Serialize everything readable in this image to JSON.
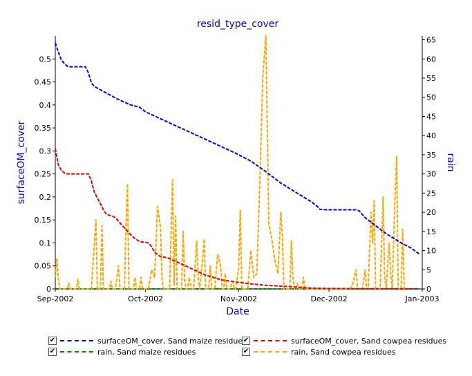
{
  "chart_data": {
    "type": "line",
    "title": "resid_type_cover",
    "xlabel": "Date",
    "ylabel_left": "surfaceOM_cover",
    "ylabel_right": "rain",
    "x_ticks": [
      "Sep-2002",
      "Oct-2002",
      "Nov-2002",
      "Dec-2002",
      "Jan-2003"
    ],
    "xlim_days": [
      0,
      122
    ],
    "ylim_left": [
      0,
      0.55
    ],
    "y_ticks_left": [
      "0",
      "0.05",
      "0.1",
      "0.15",
      "0.2",
      "0.25",
      "0.3",
      "0.35",
      "0.4",
      "0.45",
      "0.5"
    ],
    "ylim_right": [
      0,
      66
    ],
    "y_ticks_right": [
      "0",
      "5",
      "10",
      "15",
      "20",
      "25",
      "30",
      "35",
      "40",
      "45",
      "50",
      "55",
      "60",
      "65"
    ],
    "grid": false,
    "legend_position": "bottom",
    "series": [
      {
        "name": "surfaceOM_cover, Sand maize residues",
        "axis": "left",
        "color": "#0000cc",
        "points": [
          [
            0,
            0.535
          ],
          [
            1,
            0.515
          ],
          [
            2,
            0.498
          ],
          [
            3,
            0.49
          ],
          [
            4,
            0.484
          ],
          [
            5,
            0.483
          ],
          [
            10,
            0.483
          ],
          [
            11,
            0.47
          ],
          [
            12,
            0.448
          ],
          [
            13,
            0.44
          ],
          [
            15,
            0.433
          ],
          [
            20,
            0.415
          ],
          [
            25,
            0.4
          ],
          [
            28,
            0.395
          ],
          [
            30,
            0.385
          ],
          [
            40,
            0.355
          ],
          [
            50,
            0.325
          ],
          [
            60,
            0.295
          ],
          [
            65,
            0.278
          ],
          [
            70,
            0.255
          ],
          [
            75,
            0.23
          ],
          [
            80,
            0.21
          ],
          [
            85,
            0.19
          ],
          [
            87,
            0.18
          ],
          [
            88,
            0.173
          ],
          [
            90,
            0.172
          ],
          [
            100,
            0.172
          ],
          [
            101,
            0.17
          ],
          [
            103,
            0.155
          ],
          [
            105,
            0.145
          ],
          [
            107,
            0.135
          ],
          [
            110,
            0.12
          ],
          [
            115,
            0.1
          ],
          [
            118,
            0.09
          ],
          [
            121,
            0.076
          ]
        ]
      },
      {
        "name": "surfaceOM_cover, Sand cowpea residues",
        "axis": "left",
        "color": "#dd0000",
        "points": [
          [
            0,
            0.305
          ],
          [
            1,
            0.27
          ],
          [
            2,
            0.258
          ],
          [
            3,
            0.252
          ],
          [
            4,
            0.25
          ],
          [
            11,
            0.25
          ],
          [
            12,
            0.235
          ],
          [
            13,
            0.21
          ],
          [
            15,
            0.185
          ],
          [
            16,
            0.172
          ],
          [
            17,
            0.162
          ],
          [
            19,
            0.158
          ],
          [
            20,
            0.155
          ],
          [
            22,
            0.14
          ],
          [
            24,
            0.125
          ],
          [
            26,
            0.112
          ],
          [
            28,
            0.103
          ],
          [
            31,
            0.1
          ],
          [
            32,
            0.092
          ],
          [
            33,
            0.08
          ],
          [
            35,
            0.07
          ],
          [
            37,
            0.068
          ],
          [
            38,
            0.066
          ],
          [
            40,
            0.06
          ],
          [
            45,
            0.045
          ],
          [
            50,
            0.03
          ],
          [
            55,
            0.02
          ],
          [
            60,
            0.015
          ],
          [
            65,
            0.011
          ],
          [
            70,
            0.008
          ],
          [
            75,
            0.006
          ],
          [
            80,
            0.004
          ],
          [
            85,
            0.002
          ],
          [
            90,
            0.001
          ],
          [
            100,
            0.0005
          ],
          [
            110,
            0.0003
          ],
          [
            121,
            0.0002
          ]
        ]
      },
      {
        "name": "rain, Sand maize residues",
        "axis": "right",
        "color": "#008000",
        "points": [
          [
            0,
            0
          ],
          [
            121,
            0
          ]
        ]
      },
      {
        "name": "rain, Sand cowpea residues",
        "axis": "right",
        "color": "#ffa500",
        "points": [
          [
            0,
            3
          ],
          [
            0.5,
            8
          ],
          [
            1,
            3
          ],
          [
            1.5,
            0
          ],
          [
            4,
            0
          ],
          [
            4.5,
            1.5
          ],
          [
            5,
            0
          ],
          [
            7,
            0
          ],
          [
            7.5,
            2.5
          ],
          [
            8,
            0
          ],
          [
            12,
            0
          ],
          [
            13,
            12
          ],
          [
            13.5,
            18
          ],
          [
            14,
            0
          ],
          [
            15,
            0
          ],
          [
            15.5,
            16.5
          ],
          [
            16,
            0
          ],
          [
            18,
            0
          ],
          [
            18.5,
            2
          ],
          [
            19,
            0
          ],
          [
            20,
            0
          ],
          [
            21,
            6
          ],
          [
            21.5,
            0
          ],
          [
            23,
            0
          ],
          [
            23.5,
            17
          ],
          [
            24,
            27.5
          ],
          [
            24.5,
            0
          ],
          [
            26,
            0
          ],
          [
            26.5,
            3
          ],
          [
            27,
            0
          ],
          [
            28,
            0
          ],
          [
            28.5,
            3
          ],
          [
            29,
            0
          ],
          [
            31,
            0
          ],
          [
            32,
            5
          ],
          [
            33,
            3
          ],
          [
            34,
            21.5
          ],
          [
            35,
            16
          ],
          [
            35.5,
            2
          ],
          [
            36,
            0
          ],
          [
            38,
            0
          ],
          [
            39,
            28.5
          ],
          [
            39.5,
            1
          ],
          [
            40,
            19
          ],
          [
            40.5,
            0
          ],
          [
            42,
            0
          ],
          [
            42.5,
            15
          ],
          [
            43,
            2
          ],
          [
            43.5,
            0
          ],
          [
            44,
            0
          ],
          [
            44.5,
            3
          ],
          [
            45,
            1
          ],
          [
            45.5,
            0
          ],
          [
            46,
            0
          ],
          [
            47,
            12.5
          ],
          [
            47.5,
            3
          ],
          [
            48,
            0
          ],
          [
            49,
            8
          ],
          [
            49.5,
            13
          ],
          [
            50,
            0
          ],
          [
            51,
            0
          ],
          [
            51.5,
            6
          ],
          [
            52,
            0
          ],
          [
            53,
            0
          ],
          [
            54,
            9
          ],
          [
            55,
            6
          ],
          [
            55.5,
            0
          ],
          [
            56,
            0
          ],
          [
            56.5,
            4
          ],
          [
            57,
            0
          ],
          [
            58,
            0
          ],
          [
            59,
            2
          ],
          [
            59.5,
            0
          ],
          [
            60,
            0
          ],
          [
            61,
            6
          ],
          [
            61.5,
            20.5
          ],
          [
            62,
            0
          ],
          [
            64,
            0
          ],
          [
            65,
            10
          ],
          [
            66,
            3
          ],
          [
            67,
            4
          ],
          [
            68,
            28
          ],
          [
            69,
            55.5
          ],
          [
            70,
            66
          ],
          [
            71,
            17
          ],
          [
            72,
            13
          ],
          [
            73,
            7.5
          ],
          [
            74,
            4
          ],
          [
            75,
            20
          ],
          [
            75.5,
            14
          ],
          [
            76,
            0
          ],
          [
            78,
            0
          ],
          [
            78.5,
            12.5
          ],
          [
            79,
            3
          ],
          [
            79.5,
            0
          ],
          [
            80,
            0
          ],
          [
            80.5,
            1.5
          ],
          [
            81,
            0
          ],
          [
            82,
            0
          ],
          [
            82.5,
            3
          ],
          [
            83,
            0
          ],
          [
            98,
            0
          ],
          [
            99,
            1.5
          ],
          [
            100,
            5
          ],
          [
            100.5,
            0
          ],
          [
            102,
            0
          ],
          [
            102.5,
            2
          ],
          [
            103,
            5
          ],
          [
            103.5,
            0
          ],
          [
            104,
            0
          ],
          [
            104.5,
            11
          ],
          [
            105,
            20
          ],
          [
            105.5,
            12
          ],
          [
            106,
            23
          ],
          [
            106.5,
            0
          ],
          [
            108,
            0
          ],
          [
            109,
            24
          ],
          [
            109.5,
            3
          ],
          [
            110,
            0
          ],
          [
            111,
            12
          ],
          [
            111.5,
            4
          ],
          [
            112,
            0
          ],
          [
            113,
            25
          ],
          [
            113.5,
            34.5
          ],
          [
            114,
            0
          ],
          [
            115,
            0
          ],
          [
            115.5,
            15.5
          ],
          [
            116,
            0
          ],
          [
            117,
            0
          ]
        ]
      }
    ]
  }
}
